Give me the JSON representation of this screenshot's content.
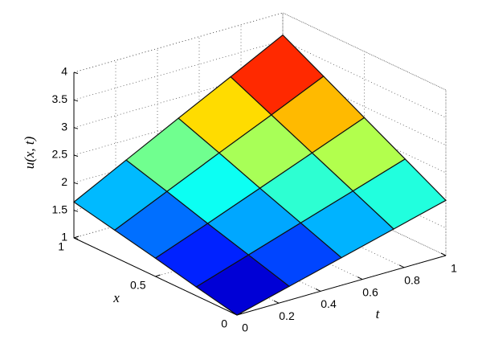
{
  "chart_data": {
    "type": "surface",
    "xlabel": "x",
    "tlabel": "t",
    "zlabel": "u(x, t)",
    "x": [
      0,
      0.25,
      0.5,
      0.75,
      1
    ],
    "t": [
      0,
      0.25,
      0.5,
      0.75,
      1
    ],
    "z": [
      [
        1,
        1.25,
        1.5,
        1.75,
        2
      ],
      [
        1.16,
        1.47,
        1.78,
        2.09,
        2.4
      ],
      [
        1.33,
        1.69,
        2.06,
        2.43,
        2.8
      ],
      [
        1.49,
        1.92,
        2.35,
        2.77,
        3.2
      ],
      [
        1.65,
        2.14,
        2.63,
        3.11,
        3.6
      ]
    ],
    "xlim": [
      0,
      1
    ],
    "tlim": [
      0,
      1
    ],
    "zlim": [
      1,
      4
    ],
    "xticks": [
      0,
      0.5,
      1
    ],
    "tticks": [
      0,
      0.2,
      0.4,
      0.6,
      0.8,
      1
    ],
    "zticks": [
      1,
      1.5,
      2,
      2.5,
      3,
      3.5,
      4
    ],
    "colormap": "jet",
    "grid": true
  }
}
